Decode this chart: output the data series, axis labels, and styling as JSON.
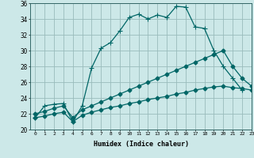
{
  "xlabel": "Humidex (Indice chaleur)",
  "bg_color": "#cce8e8",
  "grid_color": "#99bbbb",
  "line_color": "#006666",
  "xlim": [
    -0.5,
    23
  ],
  "ylim": [
    20,
    36
  ],
  "xticks": [
    0,
    1,
    2,
    3,
    4,
    5,
    6,
    7,
    8,
    9,
    10,
    11,
    12,
    13,
    14,
    15,
    16,
    17,
    18,
    19,
    20,
    21,
    22,
    23
  ],
  "yticks": [
    20,
    22,
    24,
    26,
    28,
    30,
    32,
    34,
    36
  ],
  "line1_x": [
    0,
    1,
    2,
    3,
    4,
    5,
    6,
    7,
    8,
    9,
    10,
    11,
    12,
    13,
    14,
    15,
    16,
    17,
    18,
    19,
    20,
    21,
    22
  ],
  "line1_y": [
    21.5,
    23.0,
    23.2,
    23.3,
    21.0,
    23.0,
    27.8,
    30.3,
    31.0,
    32.5,
    34.2,
    34.6,
    34.0,
    34.5,
    34.2,
    35.6,
    35.5,
    33.0,
    32.8,
    30.0,
    28.0,
    26.5,
    25.0
  ],
  "line2_x": [
    0,
    1,
    2,
    3,
    4,
    5,
    6,
    7,
    8,
    9,
    10,
    11,
    12,
    13,
    14,
    15,
    16,
    17,
    18,
    19,
    20,
    21,
    22,
    23
  ],
  "line2_y": [
    22.0,
    22.3,
    22.7,
    23.0,
    21.5,
    22.5,
    23.0,
    23.5,
    24.0,
    24.5,
    25.0,
    25.5,
    26.0,
    26.5,
    27.0,
    27.5,
    28.0,
    28.5,
    29.0,
    29.5,
    30.0,
    28.0,
    26.5,
    25.5
  ],
  "line3_x": [
    0,
    1,
    2,
    3,
    4,
    5,
    6,
    7,
    8,
    9,
    10,
    11,
    12,
    13,
    14,
    15,
    16,
    17,
    18,
    19,
    20,
    21,
    22,
    23
  ],
  "line3_y": [
    21.5,
    21.7,
    22.0,
    22.2,
    21.0,
    21.8,
    22.2,
    22.5,
    22.8,
    23.0,
    23.3,
    23.5,
    23.8,
    24.0,
    24.2,
    24.5,
    24.7,
    25.0,
    25.2,
    25.4,
    25.5,
    25.3,
    25.2,
    25.0
  ]
}
